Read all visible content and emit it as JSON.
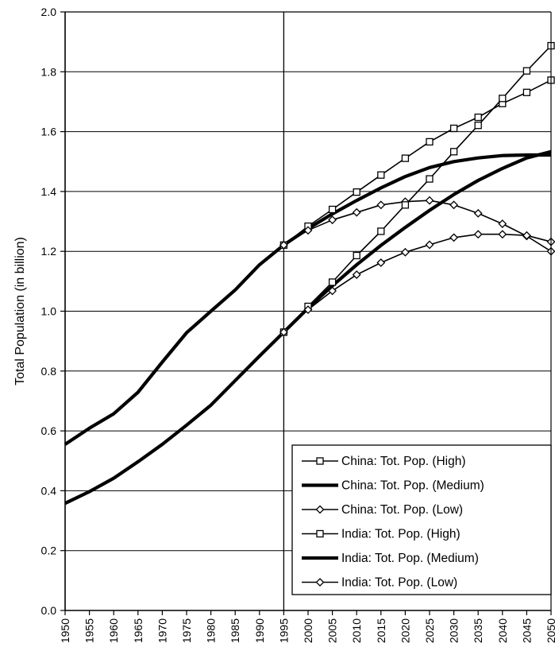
{
  "chart_data": {
    "type": "line",
    "title": "",
    "xlabel": "",
    "ylabel": "Total Population (in billion)",
    "xlim": [
      1950,
      2050
    ],
    "ylim": [
      0.0,
      2.0
    ],
    "x_ticks": [
      "1950",
      "1955",
      "1960",
      "1965",
      "1970",
      "1975",
      "1980",
      "1985",
      "1990",
      "1995",
      "2000",
      "2005",
      "2010",
      "2015",
      "2020",
      "2025",
      "2030",
      "2035",
      "2040",
      "2045",
      "2050"
    ],
    "y_ticks": [
      "0.0",
      "0.2",
      "0.4",
      "0.6",
      "0.8",
      "1.0",
      "1.2",
      "1.4",
      "1.6",
      "1.8",
      "2.0"
    ],
    "grid": {
      "horizontal": true,
      "vertical": false
    },
    "reference_line_x": 1995,
    "legend_position": "bottom-right",
    "x": [
      1950,
      1955,
      1960,
      1965,
      1970,
      1975,
      1980,
      1985,
      1990,
      1995,
      2000,
      2005,
      2010,
      2015,
      2020,
      2025,
      2030,
      2035,
      2040,
      2045,
      2050
    ],
    "series": [
      {
        "name": "China: Tot. Pop. (High)",
        "marker": "square",
        "style": "thin",
        "values": [
          0.555,
          0.609,
          0.657,
          0.729,
          0.83,
          0.928,
          1.0,
          1.071,
          1.155,
          1.221,
          1.284,
          1.34,
          1.398,
          1.455,
          1.511,
          1.566,
          1.611,
          1.648,
          1.694,
          1.731,
          1.772
        ]
      },
      {
        "name": "China: Tot. Pop. (Medium)",
        "marker": "none",
        "style": "thick",
        "values": [
          0.555,
          0.609,
          0.657,
          0.729,
          0.83,
          0.928,
          1.0,
          1.071,
          1.155,
          1.221,
          1.276,
          1.325,
          1.37,
          1.412,
          1.45,
          1.48,
          1.5,
          1.512,
          1.52,
          1.522,
          1.522
        ]
      },
      {
        "name": "China: Tot. Pop. (Low)",
        "marker": "diamond",
        "style": "thin",
        "values": [
          0.555,
          0.609,
          0.657,
          0.729,
          0.83,
          0.928,
          1.0,
          1.071,
          1.155,
          1.221,
          1.27,
          1.305,
          1.33,
          1.355,
          1.366,
          1.37,
          1.355,
          1.327,
          1.292,
          1.251,
          1.2
        ]
      },
      {
        "name": "India: Tot. Pop. (High)",
        "marker": "square",
        "style": "thin",
        "values": [
          0.358,
          0.397,
          0.442,
          0.497,
          0.555,
          0.619,
          0.686,
          0.768,
          0.85,
          0.93,
          1.016,
          1.097,
          1.186,
          1.267,
          1.355,
          1.442,
          1.533,
          1.621,
          1.711,
          1.803,
          1.887
        ]
      },
      {
        "name": "India: Tot. Pop. (Medium)",
        "marker": "none",
        "style": "thick",
        "values": [
          0.358,
          0.397,
          0.442,
          0.497,
          0.555,
          0.619,
          0.686,
          0.768,
          0.85,
          0.93,
          1.01,
          1.085,
          1.155,
          1.22,
          1.28,
          1.337,
          1.39,
          1.437,
          1.477,
          1.512,
          1.533
        ]
      },
      {
        "name": "India: Tot. Pop. (Low)",
        "marker": "diamond",
        "style": "thin",
        "values": [
          0.358,
          0.397,
          0.442,
          0.497,
          0.555,
          0.619,
          0.686,
          0.768,
          0.85,
          0.93,
          1.005,
          1.068,
          1.122,
          1.162,
          1.197,
          1.222,
          1.246,
          1.257,
          1.257,
          1.253,
          1.232
        ]
      }
    ]
  }
}
